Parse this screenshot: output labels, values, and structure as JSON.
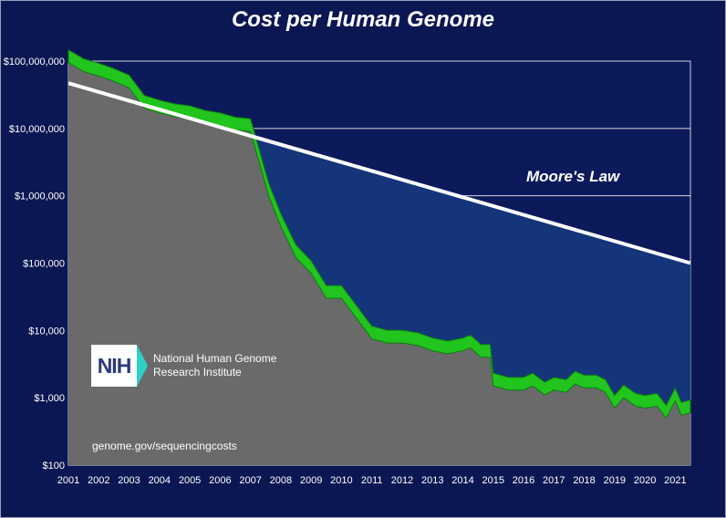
{
  "chart_data": {
    "type": "area",
    "title": "Cost per Human Genome",
    "xlabel": "",
    "ylabel": "",
    "y_scale": "log",
    "ylim": [
      100,
      100000000
    ],
    "xlim": [
      2001.0,
      2021.5
    ],
    "x_tick_labels": [
      "2001",
      "2002",
      "2003",
      "2004",
      "2005",
      "2006",
      "2007",
      "2008",
      "2009",
      "2010",
      "2011",
      "2012",
      "2013",
      "2014",
      "2015",
      "2016",
      "2017",
      "2018",
      "2019",
      "2020",
      "2021"
    ],
    "y_tick_labels": [
      "$100,000,000",
      "$10,000,000",
      "$1,000,000",
      "$100,000",
      "$10,000",
      "$1,000",
      "$100"
    ],
    "y_tick_values": [
      100000000,
      10000000,
      1000000,
      100000,
      10000,
      1000,
      100
    ],
    "grid": true,
    "series": [
      {
        "x": [
          2001.0,
          2001.5,
          2002.0,
          2002.5,
          2003.0,
          2003.5,
          2004.0,
          2004.5,
          2005.0,
          2005.5,
          2006.0,
          2006.5,
          2007.0,
          2007.3,
          2007.6,
          2008.0,
          2008.5,
          2009.0,
          2009.5,
          2010.0,
          2010.5,
          2011.0,
          2011.25,
          2011.5,
          2012.0,
          2012.5,
          2013.0,
          2013.5,
          2014.0,
          2014.25,
          2014.6,
          2014.9,
          2015.0,
          2015.5,
          2016.0,
          2016.3,
          2016.7,
          2017.0,
          2017.4,
          2017.7,
          2018.0,
          2018.4,
          2018.7,
          2019.0,
          2019.3,
          2019.7,
          2020.0,
          2020.4,
          2020.7,
          2021.0,
          2021.2,
          2021.5
        ],
        "values": [
          95000000,
          70000000,
          60000000,
          50000000,
          40000000,
          20000000,
          17000000,
          15000000,
          14000000,
          12000000,
          11000000,
          9500000,
          9000000,
          3000000,
          1000000,
          350000,
          120000,
          70000,
          30000,
          30000,
          15000,
          7500,
          7000,
          6500,
          6500,
          6000,
          5000,
          4500,
          5000,
          5500,
          4000,
          4000,
          1500,
          1300,
          1300,
          1500,
          1100,
          1300,
          1200,
          1600,
          1400,
          1400,
          1200,
          700,
          1000,
          750,
          700,
          750,
          500,
          900,
          550,
          600
        ]
      },
      {
        "x": [
          2001.0,
          2021.5
        ],
        "values": [
          47000000,
          100000
        ]
      }
    ],
    "annotations": [
      "Moore's Law"
    ]
  },
  "logo": {
    "abbr": "NIH",
    "line1": "National Human Genome",
    "line2": "Research Institute"
  },
  "source_text": "genome.gov/sequencingcosts",
  "colors": {
    "background": "#0b1753",
    "plot_bg": "#0c1a5c",
    "gap_fill": "#14357a",
    "cost_area": "#6a6a6a",
    "cost_band": "#22c41e",
    "moore_line": "#ffffff",
    "gridline": "#d8d8d8"
  }
}
